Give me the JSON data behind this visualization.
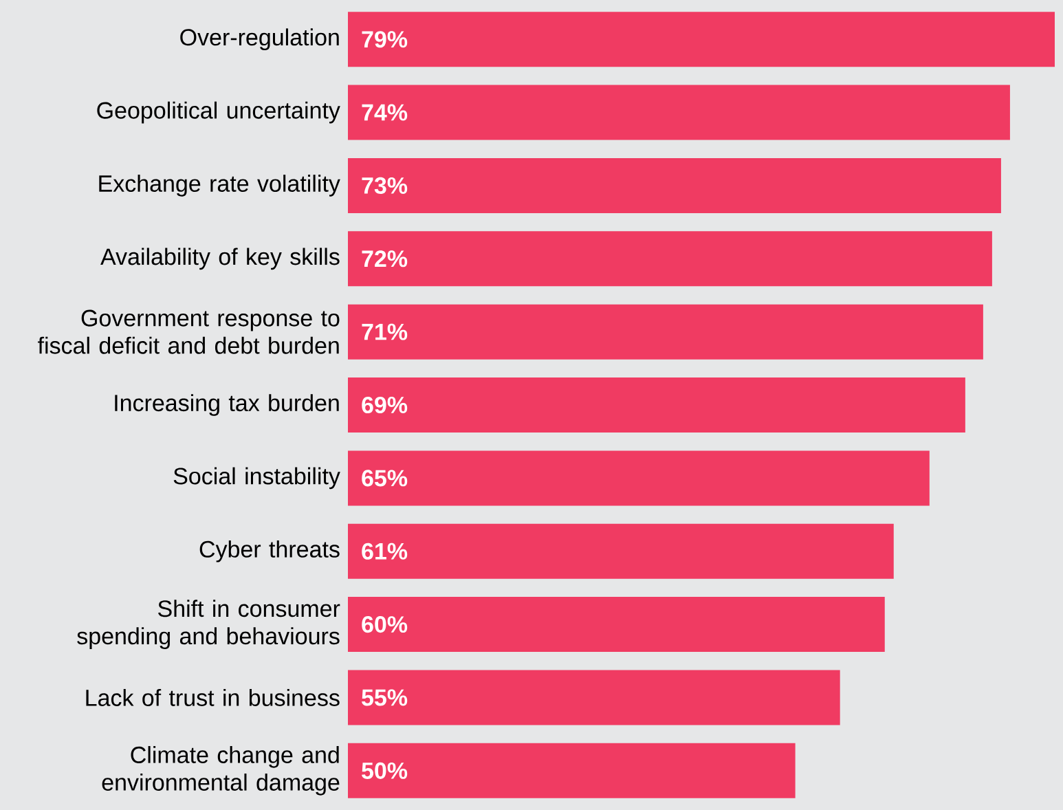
{
  "chart_data": {
    "type": "bar",
    "orientation": "horizontal",
    "color": "#f03b62",
    "categories": [
      "Over-regulation",
      "Geopolitical uncertainty",
      "Exchange rate volatility",
      "Availability of key skills",
      "Government response to fiscal deficit and debt burden",
      "Increasing tax burden",
      "Social instability",
      "Cyber threats",
      "Shift in consumer spending and behaviours",
      "Lack of trust in business",
      "Climate change and environmental damage"
    ],
    "values": [
      79,
      74,
      73,
      72,
      71,
      69,
      65,
      61,
      60,
      55,
      50
    ],
    "value_labels": [
      "79%",
      "74%",
      "73%",
      "72%",
      "71%",
      "69%",
      "65%",
      "61%",
      "60%",
      "55%",
      "50%"
    ]
  }
}
